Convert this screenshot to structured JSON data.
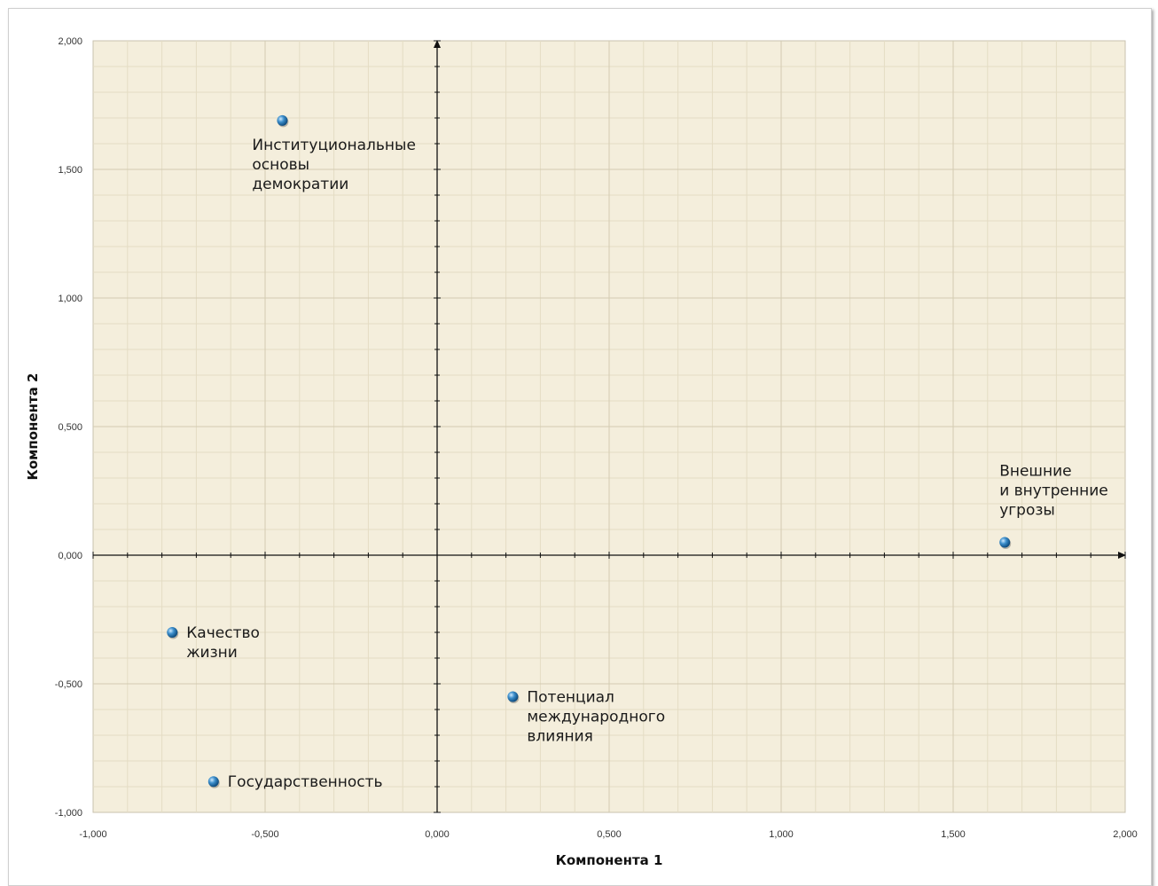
{
  "chart_data": {
    "type": "scatter",
    "xlabel": "Компонента 1",
    "ylabel": "Компонента 2",
    "xlim": [
      -1.0,
      2.0
    ],
    "ylim": [
      -1.0,
      2.0
    ],
    "x_ticks": [
      "-1,000",
      "-0,500",
      "0,000",
      "0,500",
      "1,000",
      "1,500",
      "2,000"
    ],
    "y_ticks": [
      "-1,000",
      "-0,500",
      "0,000",
      "0,500",
      "1,000",
      "1,500",
      "2,000"
    ],
    "grid": true,
    "colors": {
      "background": "#f4eedc",
      "point": "#2e7fb8",
      "axis": "#111111"
    },
    "points": [
      {
        "lines": [
          "Институциональные",
          "основы",
          "демократии"
        ],
        "x": -0.45,
        "y": 1.69
      },
      {
        "lines": [
          "Внешние",
          "и внутренние",
          "угрозы"
        ],
        "x": 1.65,
        "y": 0.05
      },
      {
        "lines": [
          "Качество",
          "жизни"
        ],
        "x": -0.77,
        "y": -0.3
      },
      {
        "lines": [
          "Потенциал",
          "международного",
          "влияния"
        ],
        "x": 0.22,
        "y": -0.55
      },
      {
        "lines": [
          "Государственность"
        ],
        "x": -0.65,
        "y": -0.88
      }
    ]
  }
}
